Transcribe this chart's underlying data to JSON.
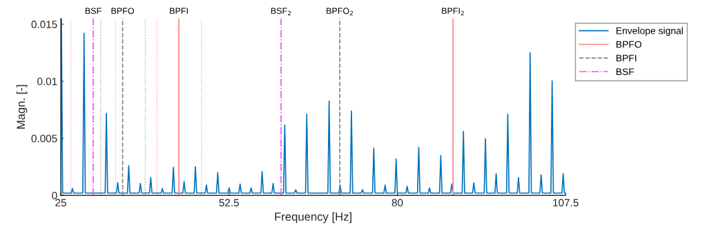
{
  "chart_data": {
    "type": "line",
    "xlabel": "Frequency [Hz]",
    "ylabel": "Magn. [-]",
    "xlim": [
      25,
      107.5
    ],
    "xticks": [
      25,
      52.5,
      80,
      107.5
    ],
    "ylim": [
      0,
      0.0155
    ],
    "yticks": [
      0,
      0.005,
      0.01,
      0.015
    ],
    "grid": false,
    "legend": "top right",
    "series": [
      {
        "name": "Envelope signal",
        "color": "#0072bd",
        "line_style": "solid",
        "x": [
          25,
          25.1,
          25.3,
          26.7,
          26.9,
          27.1,
          28.6,
          28.8,
          29.0,
          32.25,
          32.45,
          32.65,
          34.1,
          34.3,
          34.5,
          35.9,
          36.1,
          36.3,
          37.8,
          38.0,
          38.2,
          39.5,
          39.7,
          39.9,
          41.4,
          41.6,
          41.8,
          43.2,
          43.4,
          43.6,
          44.95,
          45.15,
          45.35,
          46.8,
          47.0,
          47.2,
          48.6,
          48.8,
          49.0,
          50.45,
          50.65,
          50.85,
          52.3,
          52.5,
          52.7,
          54.1,
          54.3,
          54.5,
          55.9,
          56.1,
          56.3,
          57.7,
          57.9,
          58.1,
          59.5,
          59.7,
          59.9,
          61.4,
          61.6,
          61.8,
          63.2,
          63.4,
          63.6,
          65.0,
          65.2,
          65.4,
          68.65,
          68.85,
          69.05,
          70.45,
          70.65,
          70.85,
          72.3,
          72.5,
          72.7,
          74.1,
          74.3,
          74.5,
          75.95,
          76.15,
          76.35,
          77.8,
          78.0,
          78.2,
          79.6,
          79.8,
          80.0,
          81.4,
          81.6,
          81.8,
          83.3,
          83.5,
          83.7,
          85.05,
          85.25,
          85.45,
          86.9,
          87.1,
          87.3,
          88.7,
          88.9,
          89.1,
          90.6,
          90.8,
          91.0,
          92.3,
          92.5,
          92.7,
          94.2,
          94.4,
          94.6,
          95.95,
          96.15,
          96.35,
          97.85,
          98.05,
          98.25,
          99.6,
          99.8,
          100.0,
          101.5,
          101.7,
          101.9,
          103.3,
          103.5,
          103.7,
          105.1,
          105.3,
          105.5,
          106.9,
          107.1,
          107.3,
          107.5
        ],
        "values": [
          0.0003,
          0.0155,
          0.0002,
          0.0002,
          0.0006,
          0.0002,
          0.0002,
          0.0142,
          0.0002,
          0.0002,
          0.00717,
          0.0002,
          0.0002,
          0.0011,
          0.0002,
          0.0002,
          0.0026,
          0.0002,
          0.0002,
          0.00104,
          0.0002,
          0.0002,
          0.00155,
          0.0002,
          0.0002,
          0.0006,
          0.0002,
          0.0002,
          0.00245,
          0.0002,
          0.0002,
          0.0012,
          0.0002,
          0.0002,
          0.0025,
          0.0002,
          0.0002,
          0.0009,
          0.0002,
          0.0002,
          0.002,
          0.0002,
          0.0002,
          0.00065,
          0.0002,
          0.0002,
          0.001,
          0.0002,
          0.0002,
          0.00065,
          0.0002,
          0.0002,
          0.0021,
          0.0002,
          0.0002,
          0.00104,
          0.0002,
          0.0002,
          0.00616,
          0.0002,
          0.0002,
          0.0005,
          0.0002,
          0.0002,
          0.00713,
          0.0002,
          0.0002,
          0.00827,
          0.0002,
          0.0002,
          0.0009,
          0.0002,
          0.0002,
          0.0074,
          0.0002,
          0.0002,
          0.0005,
          0.0002,
          0.0002,
          0.00414,
          0.0002,
          0.0002,
          0.0009,
          0.0002,
          0.0002,
          0.0032,
          0.0002,
          0.0002,
          0.0008,
          0.0002,
          0.0002,
          0.0042,
          0.0002,
          0.0002,
          0.00065,
          0.0002,
          0.0002,
          0.0035,
          0.0002,
          0.0002,
          0.001,
          0.0002,
          0.0002,
          0.0056,
          0.0002,
          0.0002,
          0.0011,
          0.0002,
          0.0002,
          0.00496,
          0.0002,
          0.0002,
          0.0019,
          0.0002,
          0.0002,
          0.00713,
          0.0002,
          0.0002,
          0.00155,
          0.0002,
          0.0002,
          0.0125,
          0.0002,
          0.0002,
          0.0018,
          0.0002,
          0.0002,
          0.01004,
          0.0002,
          0.0002,
          0.0019,
          0.0002,
          0.0002
        ]
      },
      {
        "name": "BPFO",
        "color": "#ff8080",
        "line_style": "solid",
        "x": [
          44.3,
          44.3
        ],
        "values": [
          0,
          0.0155
        ]
      },
      {
        "name": "BPFI",
        "color": "#808080",
        "line_style": "dashed",
        "x": [
          35.1,
          35.1
        ],
        "values": [
          0,
          0.0155
        ]
      },
      {
        "name": "BSF",
        "color": "#ff44ff",
        "line_style": "dashdot",
        "x": [
          30.3,
          30.3
        ],
        "values": [
          0,
          0.0155
        ]
      },
      {
        "color": "#ff8080",
        "line_style": "solid",
        "x": [
          89.1,
          89.1
        ],
        "values": [
          0,
          0.0155
        ]
      },
      {
        "color": "#808080",
        "line_style": "dashed",
        "x": [
          70.6,
          70.6
        ],
        "values": [
          0,
          0.0155
        ]
      },
      {
        "color": "#ff44ff",
        "line_style": "dashdot",
        "x": [
          61.0,
          61.0
        ],
        "values": [
          0,
          0.0155
        ]
      }
    ],
    "ref_lines": [
      {
        "axis": "x",
        "value": 26.65,
        "color": "#ff99ff",
        "line_style": "dotted"
      },
      {
        "axis": "x",
        "value": 33.95,
        "color": "#ff99ff",
        "line_style": "dotted"
      },
      {
        "axis": "x",
        "value": 31.5,
        "color": "#a0a0a0",
        "line_style": "dotted"
      },
      {
        "axis": "x",
        "value": 38.8,
        "color": "#a0a0a0",
        "line_style": "dotted"
      },
      {
        "axis": "x",
        "value": 40.7,
        "color": "#ff9999",
        "line_style": "dotted"
      },
      {
        "axis": "x",
        "value": 48.0,
        "color": "#ff9999",
        "line_style": "dotted"
      }
    ],
    "annotations": [
      {
        "text": "BSF",
        "x": 30.3,
        "y": 0.0155
      },
      {
        "text": "BPFO",
        "x": 35.1,
        "y": 0.0155
      },
      {
        "text": "BPFI",
        "x": 44.3,
        "y": 0.0155
      },
      {
        "text": "BSF$_{2}$",
        "x": 61.0,
        "y": 0.0155
      },
      {
        "text": "BPFO$_{2}$",
        "x": 70.6,
        "y": 0.0155
      },
      {
        "text": "BPFI$_{2}$",
        "x": 89.1,
        "y": 0.0155
      }
    ]
  }
}
